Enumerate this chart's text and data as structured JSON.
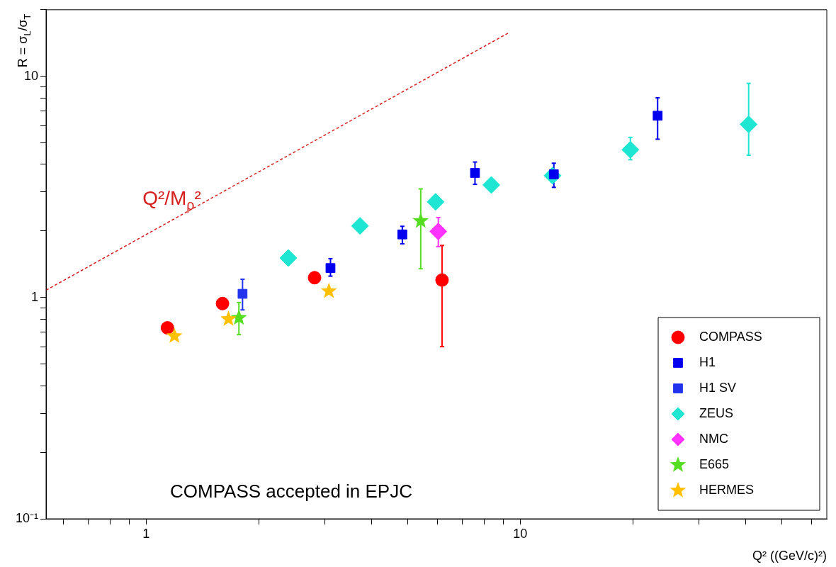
{
  "chart_data": {
    "type": "scatter",
    "xlabel": "Q² ((GeV/c)²)",
    "ylabel": "R = σ$_{L}$/σ$_{T}$",
    "log": "xy",
    "grid": false,
    "legend": "bottom right",
    "xlim": [
      0.54,
      66
    ],
    "ylim": [
      0.1,
      20
    ],
    "xticks": [
      {
        "value": 0.6,
        "label": null
      },
      {
        "value": 0.7,
        "label": null
      },
      {
        "value": 0.8,
        "label": null
      },
      {
        "value": 0.9,
        "label": null
      },
      1,
      {
        "value": 2,
        "label": null
      },
      {
        "value": 3,
        "label": null
      },
      {
        "value": 4,
        "label": null
      },
      {
        "value": 5,
        "label": null
      },
      {
        "value": 6,
        "label": null
      },
      {
        "value": 7,
        "label": null
      },
      {
        "value": 8,
        "label": null
      },
      {
        "value": 9,
        "label": null
      },
      10,
      {
        "value": 20,
        "label": null
      },
      {
        "value": 30,
        "label": null
      },
      {
        "value": 40,
        "label": null
      },
      {
        "value": 50,
        "label": null
      },
      {
        "value": 60,
        "label": null
      }
    ],
    "yticks": [
      {
        "value": 0.1,
        "label": "10⁻¹"
      },
      {
        "value": 0.2,
        "label": null
      },
      {
        "value": 0.3,
        "label": null
      },
      {
        "value": 0.4,
        "label": null
      },
      {
        "value": 0.5,
        "label": null
      },
      {
        "value": 0.6,
        "label": null
      },
      {
        "value": 0.7,
        "label": null
      },
      {
        "value": 0.8,
        "label": null
      },
      {
        "value": 0.9,
        "label": null
      },
      1,
      {
        "value": 2,
        "label": null
      },
      {
        "value": 3,
        "label": null
      },
      {
        "value": 4,
        "label": null
      },
      {
        "value": 5,
        "label": null
      },
      {
        "value": 6,
        "label": null
      },
      {
        "value": 7,
        "label": null
      },
      {
        "value": 8,
        "label": null
      },
      {
        "value": 9,
        "label": null
      },
      10,
      {
        "value": 20,
        "label": null
      }
    ],
    "series": [
      {
        "name": "Q²/M$_{ρ}$²",
        "type": "line",
        "color": "#d62020",
        "line_style": "dashed",
        "marker": "none",
        "x": [
          0.54,
          9.29
        ],
        "values": [
          1.08,
          15.7
        ]
      },
      {
        "name": "COMPASS",
        "color": "#ff0000",
        "marker": "circle",
        "x": [
          1.14,
          1.6,
          2.82,
          6.18
        ],
        "values": [
          0.73,
          0.94,
          1.23,
          1.2
        ],
        "errors": [
          null,
          null,
          null,
          [
            0.6,
            1.72
          ]
        ]
      },
      {
        "name": "H1",
        "color": "#0000ee",
        "marker": "square",
        "x": [
          3.11,
          4.84,
          7.57,
          12.3,
          23.3
        ],
        "values": [
          1.36,
          1.93,
          3.66,
          3.61,
          6.64
        ],
        "errors": [
          [
            1.25,
            1.5
          ],
          [
            1.75,
            2.1
          ],
          [
            3.25,
            4.1
          ],
          [
            3.15,
            4.05
          ],
          [
            5.2,
            8.0
          ]
        ]
      },
      {
        "name": "H1 SV",
        "color": "#2233ee",
        "marker": "square",
        "x": [
          1.81
        ],
        "values": [
          1.04
        ],
        "errors": [
          [
            0.88,
            1.21
          ]
        ]
      },
      {
        "name": "ZEUS",
        "color": "#1ee6d2",
        "marker": "diamond",
        "x": [
          2.4,
          3.73,
          5.94,
          8.37,
          12.2,
          19.7,
          40.8
        ],
        "values": [
          1.51,
          2.11,
          2.71,
          3.23,
          3.56,
          4.66,
          6.07
        ],
        "errors": [
          null,
          null,
          null,
          null,
          null,
          [
            4.2,
            5.3
          ],
          [
            4.4,
            9.3
          ]
        ]
      },
      {
        "name": "NMC",
        "color": "#ff33ff",
        "marker": "diamond",
        "x": [
          6.04
        ],
        "values": [
          1.99
        ],
        "errors": [
          [
            1.7,
            2.3
          ]
        ]
      },
      {
        "name": "E665",
        "color": "#55dd22",
        "marker": "star",
        "x": [
          1.77,
          5.42
        ],
        "values": [
          0.81,
          2.22
        ],
        "errors": [
          [
            0.68,
            0.95
          ],
          [
            1.35,
            3.1
          ]
        ]
      },
      {
        "name": "HERMES",
        "color": "#ffc000",
        "marker": "star",
        "x": [
          1.19,
          1.66,
          3.08
        ],
        "values": [
          0.67,
          0.8,
          1.07
        ],
        "errors": [
          null,
          null,
          null
        ]
      }
    ],
    "annotations": [
      "COMPASS accepted in EPJC"
    ]
  }
}
